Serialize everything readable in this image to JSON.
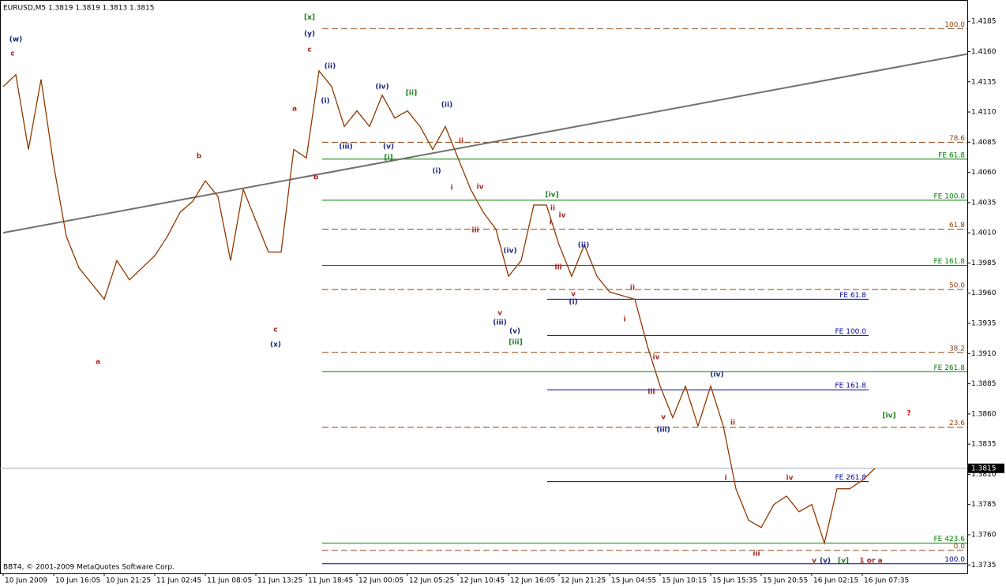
{
  "chart_data": {
    "type": "line",
    "title": "EURUSD,M5  1.3819 1.3819 1.3813 1.3815",
    "footer": "BBT4, © 2001-2009 MetaQuotes Software Corp.",
    "color": "#e0702a",
    "categories": [
      "10 Jun 2009",
      null,
      null,
      null,
      "10 Jun 16:05",
      null,
      null,
      null,
      "10 Jun 21:25",
      null,
      null,
      null,
      "11 Jun 02:45",
      null,
      null,
      null,
      "11 Jun 08:05",
      null,
      null,
      null,
      "11 Jun 13:25",
      null,
      null,
      null,
      "11 Jun 18:45",
      null,
      null,
      null,
      "12 Jun 00:05",
      null,
      null,
      null,
      "12 Jun 05:25",
      null,
      null,
      null,
      "12 Jun 10:45",
      null,
      null,
      null,
      "12 Jun 16:05",
      null,
      null,
      null,
      "12 Jun 21:25",
      null,
      null,
      null,
      "15 Jun 04:55",
      null,
      null,
      null,
      "15 Jun 10:15",
      null,
      null,
      null,
      "15 Jun 15:35",
      null,
      null,
      null,
      "15 Jun 20:55",
      null,
      null,
      null,
      "16 Jun 02:15",
      null,
      null,
      null,
      "16 Jun 07:35",
      null
    ],
    "values": [
      1.4131,
      1.4141,
      1.4079,
      1.4137,
      1.4066,
      1.4007,
      1.3981,
      1.3968,
      1.3955,
      1.3987,
      1.3971,
      1.3981,
      1.3991,
      1.4007,
      1.4027,
      1.4036,
      1.4053,
      1.404,
      1.3987,
      1.4046,
      1.402,
      1.3994,
      1.3994,
      1.4079,
      1.4072,
      1.4144,
      1.4131,
      1.4098,
      1.4111,
      1.4098,
      1.4124,
      1.4105,
      1.4111,
      1.4098,
      1.4079,
      1.4098,
      1.4072,
      1.4046,
      1.4027,
      1.4013,
      1.3974,
      1.3987,
      1.4033,
      1.4033,
      1.4,
      1.3974,
      1.4,
      1.3974,
      1.3961,
      1.3958,
      1.3955,
      1.3916,
      1.3883,
      1.3857,
      1.3883,
      1.385,
      1.3883,
      1.385,
      1.3798,
      1.3772,
      1.3766,
      1.3785,
      1.3792,
      1.3779,
      1.3785,
      1.3753,
      1.3798,
      1.3798,
      1.3805,
      1.3815
    ],
    "current": 1.3815,
    "ylim": [
      1.3728,
      1.4191
    ],
    "yticks": [
      1.4185,
      {
        "value": 1.416,
        "label": "1.4160"
      },
      1.4135,
      {
        "value": 1.411,
        "label": "1.4110"
      },
      1.4085,
      {
        "value": 1.406,
        "label": "1.4060"
      },
      1.4035,
      {
        "value": 1.401,
        "label": "1.4010"
      },
      1.3985,
      {
        "value": 1.396,
        "label": "1.3960"
      },
      1.3935,
      {
        "value": 1.391,
        "label": "1.3910"
      },
      1.3885,
      {
        "value": 1.386,
        "label": "1.3860"
      },
      1.3835,
      {
        "value": 1.381,
        "label": "1.3810"
      },
      1.3785,
      {
        "value": 1.376,
        "label": "1.3760"
      },
      1.3735
    ],
    "trendline": {
      "color": "#707070",
      "values": [
        1.401,
        1.4158
      ]
    },
    "levels": [
      {
        "label": "100.0",
        "value": 1.4179,
        "color": "#8b4513"
      },
      {
        "label": "78.6",
        "value": 1.4085,
        "color": "#8b4513"
      },
      {
        "label": "61.8",
        "value": 1.4013,
        "color": "#8b4513"
      },
      {
        "label": "50.0",
        "value": 1.3963,
        "color": "#8b4513"
      },
      {
        "label": "38.2",
        "value": 1.3911,
        "color": "#8b4513"
      },
      {
        "label": "23.6",
        "value": 1.3849,
        "color": "#8b4513"
      },
      {
        "label": "0.0",
        "value": 1.3747,
        "color": "#8b4513"
      },
      {
        "label": "FE 61.8",
        "value": 1.4071,
        "color": "#008000"
      },
      {
        "label": "FE 100.0",
        "value": 1.4037,
        "color": "#008000"
      },
      {
        "label": "FE 161.8",
        "value": 1.3983,
        "color": "#008000"
      },
      {
        "label": "FE 261.8",
        "value": 1.3895,
        "color": "#008000"
      },
      {
        "label": "FE 423.6",
        "value": 1.3753,
        "color": "#008000"
      },
      {
        "label": "FE 61.8",
        "value": 1.3955,
        "color": "#0000a0"
      },
      {
        "label": "FE 100.0",
        "value": 1.3925,
        "color": "#0000a0"
      },
      {
        "label": "FE 161.8",
        "value": 1.388,
        "color": "#0000a0"
      },
      {
        "label": "FE 261.8",
        "value": 1.3804,
        "color": "#0000a0"
      },
      {
        "label": "100.0",
        "value": 1.3736,
        "color": "#0000a0"
      }
    ],
    "annotations": [
      {
        "text": "(w)",
        "color": "#1a237e"
      },
      {
        "text": "c",
        "color": "#a0281e"
      },
      {
        "text": "[x]",
        "color": "#1e7d1e"
      },
      {
        "text": "(y)",
        "color": "#1a237e"
      },
      {
        "text": "c",
        "color": "#a0281e"
      },
      {
        "text": "(ii)",
        "color": "#1a237e"
      },
      {
        "text": "(i)",
        "color": "#1a237e"
      },
      {
        "text": "a",
        "color": "#a0281e"
      },
      {
        "text": "(iii)",
        "color": "#1a237e"
      },
      {
        "text": "(iv)",
        "color": "#1a237e"
      },
      {
        "text": "[ii]",
        "color": "#1e7d1e"
      },
      {
        "text": "(ii)",
        "color": "#1a237e"
      },
      {
        "text": "(v)",
        "color": "#1a237e"
      },
      {
        "text": "[i]",
        "color": "#1e7d1e"
      },
      {
        "text": "(i)",
        "color": "#1a237e"
      },
      {
        "text": "ii",
        "color": "#a0281e"
      },
      {
        "text": "iv",
        "color": "#a0281e"
      },
      {
        "text": "i",
        "color": "#a0281e"
      },
      {
        "text": "iii",
        "color": "#a0281e"
      },
      {
        "text": "b",
        "color": "#a0281e"
      },
      {
        "text": "b",
        "color": "#a0281e"
      },
      {
        "text": "[iv]",
        "color": "#1e7d1e"
      },
      {
        "text": "ii",
        "color": "#a0281e"
      },
      {
        "text": "iv",
        "color": "#a0281e"
      },
      {
        "text": "i",
        "color": "#a0281e"
      },
      {
        "text": "(iv)",
        "color": "#1a237e"
      },
      {
        "text": "(ii)",
        "color": "#1a237e"
      },
      {
        "text": "iii",
        "color": "#a0281e"
      },
      {
        "text": "v",
        "color": "#a0281e"
      },
      {
        "text": "(iii)",
        "color": "#1a237e"
      },
      {
        "text": "(v)",
        "color": "#1a237e"
      },
      {
        "text": "[iii]",
        "color": "#1e7d1e"
      },
      {
        "text": "(i)",
        "color": "#1a237e"
      },
      {
        "text": "v",
        "color": "#a0281e"
      },
      {
        "text": "ii",
        "color": "#a0281e"
      },
      {
        "text": "i",
        "color": "#a0281e"
      },
      {
        "text": "a",
        "color": "#a0281e"
      },
      {
        "text": "c",
        "color": "#a0281e"
      },
      {
        "text": "(x)",
        "color": "#1a237e"
      },
      {
        "text": "iv",
        "color": "#a0281e"
      },
      {
        "text": "iii",
        "color": "#a0281e"
      },
      {
        "text": "(iv)",
        "color": "#1a237e"
      },
      {
        "text": "v",
        "color": "#a0281e"
      },
      {
        "text": "(iii)",
        "color": "#1a237e"
      },
      {
        "text": "ii",
        "color": "#a0281e"
      },
      {
        "text": "i",
        "color": "#a0281e"
      },
      {
        "text": "iv",
        "color": "#a0281e"
      },
      {
        "text": "iii",
        "color": "#a0281e"
      },
      {
        "text": "v",
        "color": "#a0281e"
      },
      {
        "text": "(v)",
        "color": "#1a237e"
      },
      {
        "text": "[v]",
        "color": "#1e7d1e"
      },
      {
        "text": "1 or a",
        "color": "#a0281e"
      },
      {
        "text": "[iv]",
        "color": "#1e7d1e"
      },
      {
        "text": "?",
        "color": "#e00000"
      }
    ]
  }
}
